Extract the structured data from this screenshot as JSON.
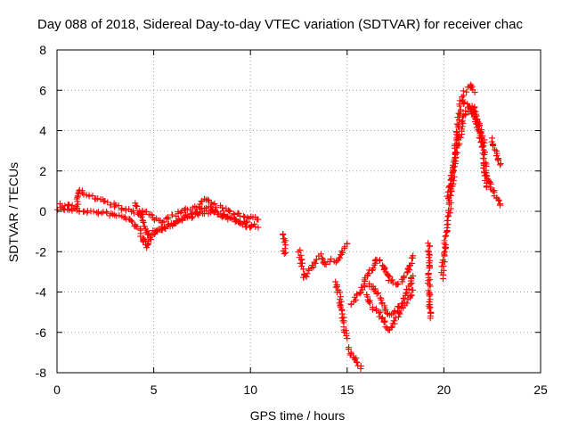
{
  "chart_data": {
    "type": "scatter",
    "title": "Day 088 of 2018, Sidereal Day-to-day VTEC variation (SDTVAR) for receiver chac",
    "xlabel": "GPS time / hours",
    "ylabel": "SDTVAR / TECUs",
    "xlim": [
      0,
      25
    ],
    "ylim": [
      -8,
      8
    ],
    "xticks": [
      "0",
      "5",
      "10",
      "15",
      "20",
      "25"
    ],
    "yticks": [
      "-8",
      "-6",
      "-4",
      "-2",
      "0",
      "2",
      "4",
      "6",
      "8"
    ],
    "grid": true,
    "marker": "+",
    "series_color": "#ff0000",
    "trends": [
      [
        [
          0.1,
          0.15
        ],
        [
          0.5,
          0.1
        ],
        [
          1.0,
          0.05
        ],
        [
          1.5,
          0.0
        ],
        [
          2.0,
          -0.05
        ],
        [
          2.5,
          -0.1
        ],
        [
          3.0,
          -0.2
        ],
        [
          3.5,
          -0.3
        ],
        [
          4.0,
          -0.6
        ],
        [
          4.3,
          -1.0
        ],
        [
          4.5,
          -1.5
        ],
        [
          4.6,
          -1.8
        ],
        [
          4.8,
          -1.4
        ],
        [
          5.0,
          -1.0
        ],
        [
          5.5,
          -0.8
        ],
        [
          6.0,
          -0.6
        ],
        [
          6.5,
          -0.4
        ],
        [
          7.0,
          -0.2
        ],
        [
          7.5,
          0.1
        ],
        [
          7.8,
          0.2
        ],
        [
          8.2,
          0.0
        ],
        [
          8.5,
          -0.2
        ],
        [
          9.0,
          -0.4
        ],
        [
          9.5,
          -0.5
        ],
        [
          10.0,
          -0.6
        ],
        [
          10.4,
          -0.8
        ]
      ],
      [
        [
          0.2,
          0.3
        ],
        [
          0.6,
          0.25
        ],
        [
          1.0,
          0.2
        ],
        [
          1.1,
          1.1
        ],
        [
          1.4,
          0.9
        ],
        [
          1.8,
          0.7
        ],
        [
          2.2,
          0.6
        ],
        [
          2.6,
          0.4
        ],
        [
          3.0,
          0.3
        ],
        [
          3.4,
          0.1
        ],
        [
          3.8,
          0.0
        ],
        [
          4.2,
          -0.1
        ],
        [
          4.6,
          0.0
        ],
        [
          5.0,
          -0.4
        ],
        [
          5.4,
          -0.5
        ],
        [
          5.8,
          -0.3
        ],
        [
          6.3,
          -0.1
        ],
        [
          6.8,
          0.1
        ],
        [
          7.3,
          0.3
        ],
        [
          7.6,
          0.6
        ],
        [
          8.0,
          0.4
        ],
        [
          8.4,
          0.2
        ],
        [
          8.8,
          0.0
        ],
        [
          9.2,
          -0.1
        ],
        [
          9.6,
          -0.2
        ],
        [
          10.0,
          -0.3
        ],
        [
          10.4,
          -0.4
        ]
      ],
      [
        [
          4.0,
          0.4
        ],
        [
          4.3,
          0.0
        ],
        [
          4.5,
          -0.7
        ],
        [
          4.7,
          -1.2
        ],
        [
          5.0,
          -1.1
        ],
        [
          5.5,
          -0.9
        ],
        [
          6.0,
          -0.6
        ],
        [
          6.5,
          -0.3
        ],
        [
          7.0,
          -0.1
        ],
        [
          7.5,
          -0.1
        ],
        [
          8.0,
          0.0
        ],
        [
          8.5,
          -0.2
        ],
        [
          9.0,
          -0.3
        ],
        [
          9.5,
          -0.6
        ],
        [
          10.0,
          -0.8
        ]
      ],
      [
        [
          11.7,
          -1.1
        ],
        [
          11.8,
          -1.4
        ],
        [
          11.75,
          -2.1
        ]
      ],
      [
        [
          12.5,
          -2.0
        ],
        [
          12.8,
          -3.3
        ],
        [
          13.0,
          -3.0
        ],
        [
          13.3,
          -2.6
        ],
        [
          13.6,
          -2.2
        ],
        [
          13.9,
          -2.7
        ],
        [
          14.2,
          -2.4
        ],
        [
          14.5,
          -2.5
        ],
        [
          14.8,
          -1.8
        ],
        [
          15.0,
          -1.6
        ]
      ],
      [
        [
          14.4,
          -3.5
        ],
        [
          14.6,
          -4.2
        ],
        [
          14.75,
          -5.0
        ],
        [
          14.9,
          -6.0
        ],
        [
          15.0,
          -6.3
        ]
      ],
      [
        [
          15.1,
          -6.8
        ],
        [
          15.3,
          -7.2
        ],
        [
          15.5,
          -7.5
        ],
        [
          15.7,
          -7.8
        ]
      ],
      [
        [
          15.2,
          -4.6
        ],
        [
          15.5,
          -4.2
        ],
        [
          15.8,
          -3.8
        ],
        [
          16.0,
          -3.3
        ],
        [
          16.2,
          -3.0
        ],
        [
          16.4,
          -2.6
        ],
        [
          16.6,
          -2.4
        ],
        [
          16.8,
          -2.6
        ],
        [
          17.0,
          -3.0
        ],
        [
          17.2,
          -3.4
        ],
        [
          17.5,
          -3.6
        ],
        [
          17.8,
          -3.5
        ],
        [
          18.0,
          -3.2
        ],
        [
          18.2,
          -2.8
        ],
        [
          18.4,
          -2.2
        ]
      ],
      [
        [
          16.0,
          -4.2
        ],
        [
          16.3,
          -4.8
        ],
        [
          16.6,
          -5.0
        ],
        [
          16.9,
          -5.4
        ],
        [
          17.1,
          -5.9
        ],
        [
          17.3,
          -5.7
        ],
        [
          17.6,
          -5.2
        ],
        [
          17.9,
          -4.7
        ],
        [
          18.2,
          -4.4
        ],
        [
          18.4,
          -3.9
        ]
      ],
      [
        [
          16.1,
          -3.6
        ],
        [
          16.4,
          -3.8
        ],
        [
          16.7,
          -4.3
        ],
        [
          17.0,
          -4.9
        ],
        [
          17.3,
          -5.2
        ],
        [
          17.6,
          -4.9
        ],
        [
          17.9,
          -4.3
        ],
        [
          18.2,
          -3.7
        ],
        [
          18.4,
          -3.2
        ]
      ],
      [
        [
          19.2,
          -1.6
        ],
        [
          19.3,
          -2.6
        ],
        [
          19.2,
          -3.1
        ],
        [
          19.3,
          -5.3
        ]
      ],
      [
        [
          19.9,
          -3.3
        ],
        [
          20.0,
          -2.4
        ],
        [
          20.1,
          -1.2
        ],
        [
          20.2,
          -0.3
        ],
        [
          20.3,
          0.2
        ],
        [
          20.4,
          1.0
        ],
        [
          20.5,
          2.0
        ],
        [
          20.6,
          3.0
        ],
        [
          20.7,
          4.0
        ],
        [
          20.8,
          5.0
        ],
        [
          20.9,
          5.5
        ],
        [
          21.0,
          5.8
        ],
        [
          21.1,
          6.0
        ],
        [
          21.2,
          6.1
        ],
        [
          21.3,
          6.2
        ],
        [
          21.4,
          6.3
        ],
        [
          21.5,
          6.1
        ],
        [
          21.6,
          5.9
        ]
      ],
      [
        [
          20.2,
          0.6
        ],
        [
          20.4,
          1.6
        ],
        [
          20.6,
          2.6
        ],
        [
          20.8,
          3.6
        ],
        [
          21.0,
          4.6
        ],
        [
          21.2,
          5.0
        ],
        [
          21.4,
          5.1
        ],
        [
          21.6,
          4.8
        ],
        [
          21.8,
          4.4
        ],
        [
          22.0,
          3.7
        ],
        [
          22.1,
          3.4
        ]
      ],
      [
        [
          21.0,
          5.4
        ],
        [
          21.3,
          5.2
        ],
        [
          21.6,
          4.6
        ],
        [
          21.8,
          4.0
        ],
        [
          22.0,
          3.2
        ]
      ],
      [
        [
          22.0,
          2.4
        ],
        [
          22.1,
          1.9
        ],
        [
          22.3,
          1.6
        ],
        [
          22.4,
          1.3
        ],
        [
          22.6,
          0.9
        ],
        [
          22.8,
          0.6
        ],
        [
          22.9,
          0.3
        ]
      ],
      [
        [
          22.5,
          3.6
        ],
        [
          22.6,
          3.2
        ],
        [
          22.7,
          2.9
        ],
        [
          22.8,
          2.6
        ],
        [
          22.9,
          2.3
        ]
      ],
      [
        [
          21.5,
          5.3
        ],
        [
          22.1,
          2.8
        ],
        [
          22.2,
          1.2
        ]
      ]
    ]
  }
}
